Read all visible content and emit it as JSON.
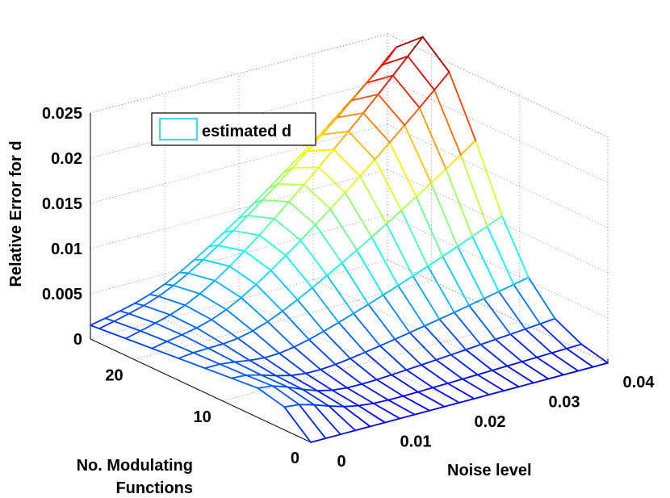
{
  "chart_data": {
    "type": "surface",
    "title": "",
    "zlabel": "Relative Error for d",
    "xlabel": "Noise level",
    "ylabel_line1": "No. Modulating",
    "ylabel_line2": "Functions",
    "legend": {
      "label": "estimated d",
      "placement": "top-left"
    },
    "x_ticks": [
      "0",
      "0.01",
      "0.02",
      "0.03",
      "0.04"
    ],
    "y_ticks": [
      "0",
      "10",
      "20"
    ],
    "z_ticks": [
      "0",
      "0.005",
      "0.01",
      "0.015",
      "0.02",
      "0.025"
    ],
    "xlim": [
      0,
      0.04
    ],
    "ylim": [
      0,
      25
    ],
    "zlim": [
      0,
      0.025
    ],
    "grid": true,
    "colormap": "jet",
    "surface": {
      "noise_levels": [
        0,
        0.002,
        0.004,
        0.006,
        0.008,
        0.01,
        0.012,
        0.014,
        0.016,
        0.018,
        0.02,
        0.022,
        0.024,
        0.026,
        0.028,
        0.03,
        0.032,
        0.034,
        0.036,
        0.038,
        0.04
      ],
      "num_functions": [
        0,
        3,
        6,
        9,
        12,
        15,
        18,
        21,
        24,
        25
      ],
      "z_peak": 0.0265,
      "z_peak_location": {
        "noise": 0.04,
        "functions": 21
      }
    }
  }
}
